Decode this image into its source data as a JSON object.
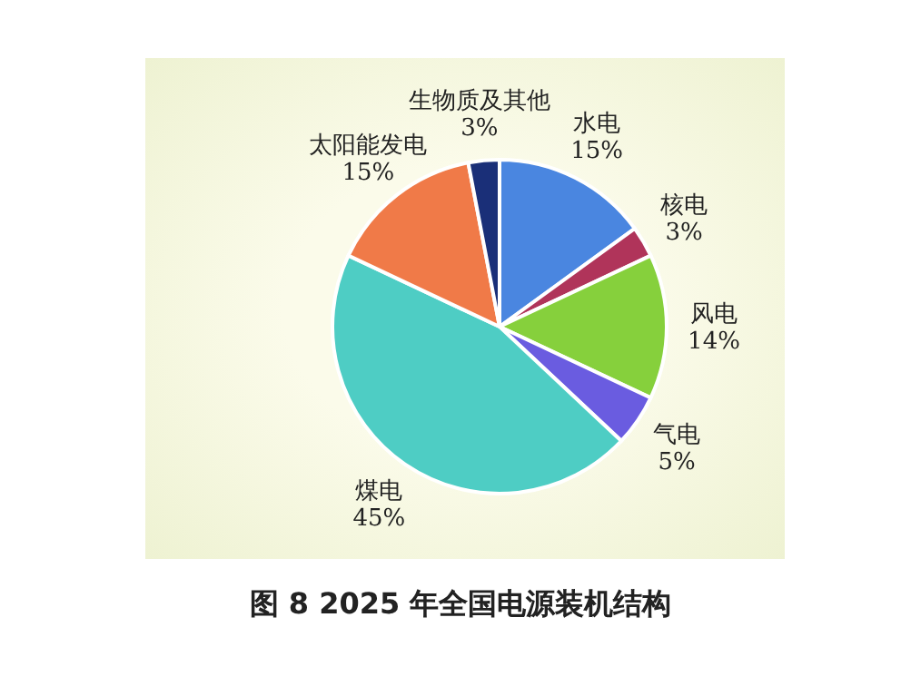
{
  "chart_data": {
    "type": "pie",
    "title": "图 8  2025 年全国电源装机结构",
    "categories": [
      "水电",
      "核电",
      "风电",
      "气电",
      "煤电",
      "太阳能发电",
      "生物质及其他"
    ],
    "values": [
      15,
      3,
      14,
      5,
      45,
      15,
      3
    ],
    "value_labels": [
      "15%",
      "3%",
      "14%",
      "5%",
      "45%",
      "15%",
      "3%"
    ],
    "colors": [
      "#4a86e0",
      "#b0345a",
      "#86d03c",
      "#6a5ce0",
      "#4ecdc4",
      "#f07a48",
      "#1a2f78"
    ],
    "legend": false
  }
}
